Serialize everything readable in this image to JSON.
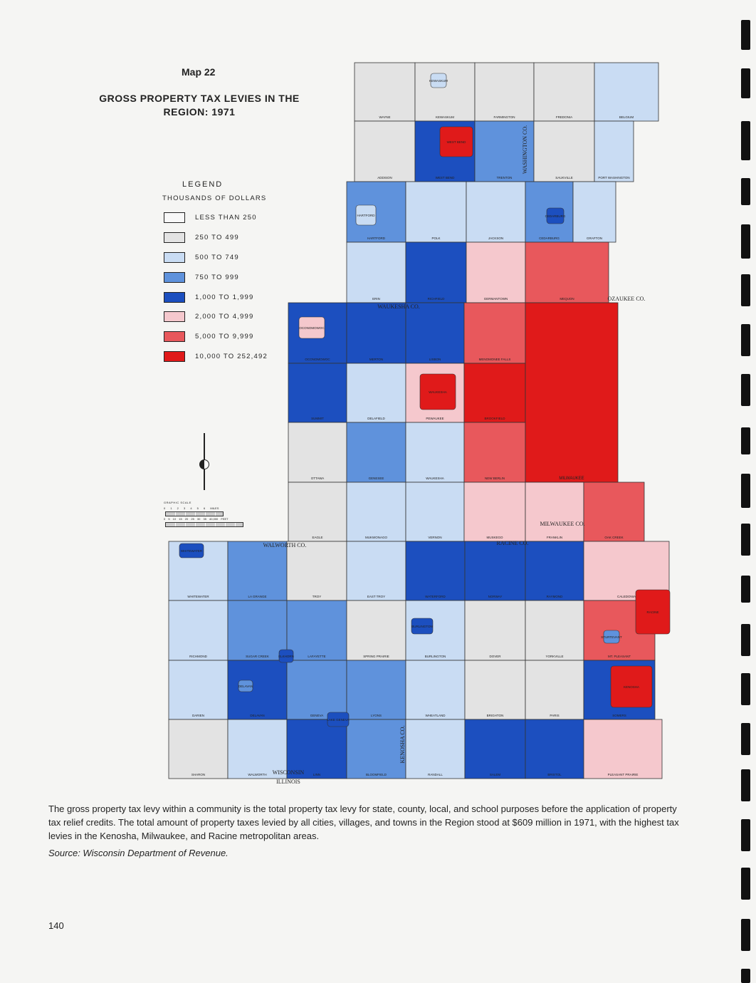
{
  "title": "Map 22",
  "subtitle": "GROSS PROPERTY TAX LEVIES IN THE REGION: 1971",
  "legend": {
    "heading": "LEGEND",
    "units": "THOUSANDS OF DOLLARS",
    "classes": [
      {
        "label": "LESS THAN 250",
        "color": "#f8f8f8"
      },
      {
        "label": "250 TO 499",
        "color": "#e3e3e3"
      },
      {
        "label": "500 TO 749",
        "color": "#c9dcf3"
      },
      {
        "label": "750 TO 999",
        "color": "#5f92dc"
      },
      {
        "label": "1,000 TO 1,999",
        "color": "#1c4fbf"
      },
      {
        "label": "2,000 TO 4,999",
        "color": "#f5c8cd"
      },
      {
        "label": "5,000 TO 9,999",
        "color": "#e8585c"
      },
      {
        "label": "10,000 TO 252,492",
        "color": "#e01a1a"
      }
    ]
  },
  "scale": {
    "title": "GRAPHIC SCALE",
    "miles": "0 1 2 3 4 5 6 MILES",
    "feet": "0 5 10 15 20 25 30 35 40,000 FEET"
  },
  "townships": [
    {
      "name": "WAYNE",
      "c": 1
    },
    {
      "name": "KEWASKUM",
      "c": 1
    },
    {
      "name": "FARMINGTON",
      "c": 1
    },
    {
      "name": "FREDONIA",
      "c": 1
    },
    {
      "name": "BELGIUM",
      "c": 2
    },
    {
      "name": "ADDISON",
      "c": 1
    },
    {
      "name": "WEST BEND",
      "c": 4
    },
    {
      "name": "TRENTON",
      "c": 3
    },
    {
      "name": "SAUKVILLE",
      "c": 1
    },
    {
      "name": "PORT WASHINGTON",
      "c": 2
    },
    {
      "name": "HARTFORD",
      "c": 3
    },
    {
      "name": "POLK",
      "c": 2
    },
    {
      "name": "JACKSON",
      "c": 2
    },
    {
      "name": "CEDARBURG",
      "c": 3
    },
    {
      "name": "GRAFTON",
      "c": 2
    },
    {
      "name": "ERIN",
      "c": 2
    },
    {
      "name": "RICHFIELD",
      "c": 4
    },
    {
      "name": "GERMANTOWN",
      "c": 5
    },
    {
      "name": "MEQUON",
      "c": 6
    },
    {
      "name": "OCONOMOWOC",
      "c": 4
    },
    {
      "name": "MERTON",
      "c": 4
    },
    {
      "name": "LISBON",
      "c": 4
    },
    {
      "name": "MENOMONEE FALLS",
      "c": 6
    },
    {
      "name": "SUMMIT",
      "c": 4
    },
    {
      "name": "DELAFIELD",
      "c": 2
    },
    {
      "name": "PEWAUKEE",
      "c": 5
    },
    {
      "name": "BROOKFIELD",
      "c": 7
    },
    {
      "name": "OTTAWA",
      "c": 1
    },
    {
      "name": "GENESEE",
      "c": 3
    },
    {
      "name": "WAUKESHA",
      "c": 2
    },
    {
      "name": "NEW BERLIN",
      "c": 6
    },
    {
      "name": "EAGLE",
      "c": 1
    },
    {
      "name": "MUKWONAGO",
      "c": 2
    },
    {
      "name": "VERNON",
      "c": 2
    },
    {
      "name": "MUSKEGO",
      "c": 5
    },
    {
      "name": "MILWAUKEE",
      "c": 7
    },
    {
      "name": "FRANKLIN",
      "c": 5
    },
    {
      "name": "OAK CREEK",
      "c": 6
    },
    {
      "name": "WHITEWATER",
      "c": 2
    },
    {
      "name": "LA GRANGE",
      "c": 3
    },
    {
      "name": "TROY",
      "c": 1
    },
    {
      "name": "EAST TROY",
      "c": 2
    },
    {
      "name": "WATERFORD",
      "c": 4
    },
    {
      "name": "NORWAY",
      "c": 4
    },
    {
      "name": "RAYMOND",
      "c": 4
    },
    {
      "name": "CALEDONIA",
      "c": 5
    },
    {
      "name": "RICHMOND",
      "c": 2
    },
    {
      "name": "SUGAR CREEK",
      "c": 3
    },
    {
      "name": "LAFAYETTE",
      "c": 3
    },
    {
      "name": "SPRING PRAIRIE",
      "c": 1
    },
    {
      "name": "BURLINGTON",
      "c": 2
    },
    {
      "name": "DOVER",
      "c": 1
    },
    {
      "name": "YORKVILLE",
      "c": 1
    },
    {
      "name": "MT. PLEASANT",
      "c": 6
    },
    {
      "name": "DARIEN",
      "c": 2
    },
    {
      "name": "DELAVAN",
      "c": 4
    },
    {
      "name": "GENEVA",
      "c": 3
    },
    {
      "name": "LYONS",
      "c": 3
    },
    {
      "name": "WHEATLAND",
      "c": 2
    },
    {
      "name": "BRIGHTON",
      "c": 1
    },
    {
      "name": "PARIS",
      "c": 1
    },
    {
      "name": "SOMERS",
      "c": 4
    },
    {
      "name": "SHARON",
      "c": 1
    },
    {
      "name": "WALWORTH",
      "c": 2
    },
    {
      "name": "LINN",
      "c": 4
    },
    {
      "name": "BLOOMFIELD",
      "c": 3
    },
    {
      "name": "RANDALL",
      "c": 2
    },
    {
      "name": "SALEM",
      "c": 4
    },
    {
      "name": "BRISTOL",
      "c": 4
    },
    {
      "name": "PLEASANT PRAIRIE",
      "c": 5
    }
  ],
  "cities": [
    {
      "name": "WEST BEND",
      "c": 7
    },
    {
      "name": "WAUKESHA",
      "c": 7
    },
    {
      "name": "RACINE",
      "c": 7
    },
    {
      "name": "KENOSHA",
      "c": 7
    },
    {
      "name": "HARTFORD",
      "c": 2
    },
    {
      "name": "BURLINGTON",
      "c": 4
    },
    {
      "name": "WHITEWATER",
      "c": 4
    },
    {
      "name": "CEDARBURG",
      "c": 4
    },
    {
      "name": "OCONOMOWOC",
      "c": 5
    },
    {
      "name": "LAKE GENEVA",
      "c": 4
    },
    {
      "name": "ELKHORN",
      "c": 4
    },
    {
      "name": "DELAVAN",
      "c": 3
    },
    {
      "name": "STURTEVANT",
      "c": 3
    },
    {
      "name": "KEWASKUM",
      "c": 2
    }
  ],
  "counties": [
    "WASHINGTON CO.",
    "OZAUKEE CO.",
    "WAUKESHA CO.",
    "MILWAUKEE CO.",
    "WALWORTH CO.",
    "RACINE CO.",
    "KENOSHA CO.",
    "WISCONSIN",
    "ILLINOIS"
  ],
  "caption": "The gross property tax levy within a community is the total property tax levy for state, county, local, and school purposes before the application of property tax relief credits. The total amount of property taxes levied by all cities, villages, and towns in the Region stood at $609 million in 1971, with the highest tax levies in the Kenosha, Milwaukee, and Racine metropolitan areas.",
  "source": "Source:  Wisconsin Department of Revenue.",
  "page_number": "140"
}
